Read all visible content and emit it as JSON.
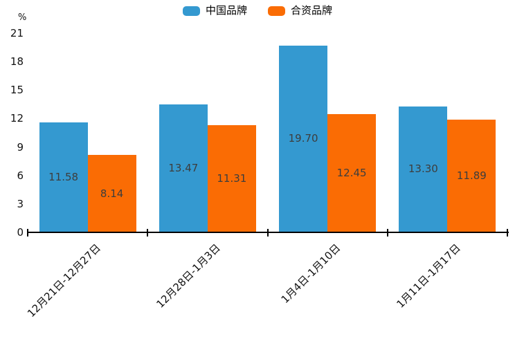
{
  "page": {
    "background": "#ffffff"
  },
  "legend": {
    "items": [
      {
        "label": "中国品牌",
        "color": "#3499d0"
      },
      {
        "label": "合资品牌",
        "color": "#fa6c04"
      }
    ]
  },
  "chart_data": {
    "type": "bar",
    "categories": [
      "12月21日-12月27日",
      "12月28日-1月3日",
      "1月4日-1月10日",
      "1月11日-1月17日"
    ],
    "series": [
      {
        "name": "中国品牌",
        "color": "#3499d0",
        "values": [
          11.58,
          13.47,
          19.7,
          13.3
        ]
      },
      {
        "name": "合资品牌",
        "color": "#fa6c04",
        "values": [
          8.14,
          11.31,
          12.45,
          11.89
        ]
      }
    ],
    "title": "",
    "xlabel": "",
    "ylabel": "%",
    "ylim": [
      0,
      21
    ],
    "yticks": [
      0,
      3,
      6,
      9,
      12,
      15,
      18,
      21
    ],
    "grid": false,
    "legend_position": "top",
    "value_label_decimals": 2,
    "value_label_color": "#3d3d3d",
    "axis_color": "#000000",
    "bar_label_position": "inside-center",
    "x_label_rotation_deg": 45
  }
}
